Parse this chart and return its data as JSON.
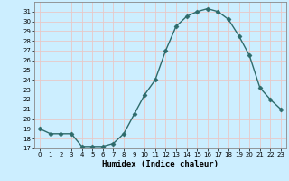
{
  "x": [
    0,
    1,
    2,
    3,
    4,
    5,
    6,
    7,
    8,
    9,
    10,
    11,
    12,
    13,
    14,
    15,
    16,
    17,
    18,
    19,
    20,
    21,
    22,
    23
  ],
  "y": [
    19,
    18.5,
    18.5,
    18.5,
    17.2,
    17.2,
    17.2,
    17.5,
    18.5,
    20.5,
    22.5,
    24,
    27,
    29.5,
    30.5,
    31,
    31.3,
    31,
    30.2,
    28.5,
    26.5,
    23.2,
    22,
    21
  ],
  "xlabel": "Humidex (Indice chaleur)",
  "xlim": [
    -0.5,
    23.5
  ],
  "ylim": [
    17,
    32
  ],
  "yticks": [
    17,
    18,
    19,
    20,
    21,
    22,
    23,
    24,
    25,
    26,
    27,
    28,
    29,
    30,
    31
  ],
  "xticks": [
    0,
    1,
    2,
    3,
    4,
    5,
    6,
    7,
    8,
    9,
    10,
    11,
    12,
    13,
    14,
    15,
    16,
    17,
    18,
    19,
    20,
    21,
    22,
    23
  ],
  "line_color": "#2e6b6b",
  "bg_color": "#cceeff",
  "grid_color": "#e8c8c8",
  "marker_size": 2.5,
  "line_width": 1.0
}
